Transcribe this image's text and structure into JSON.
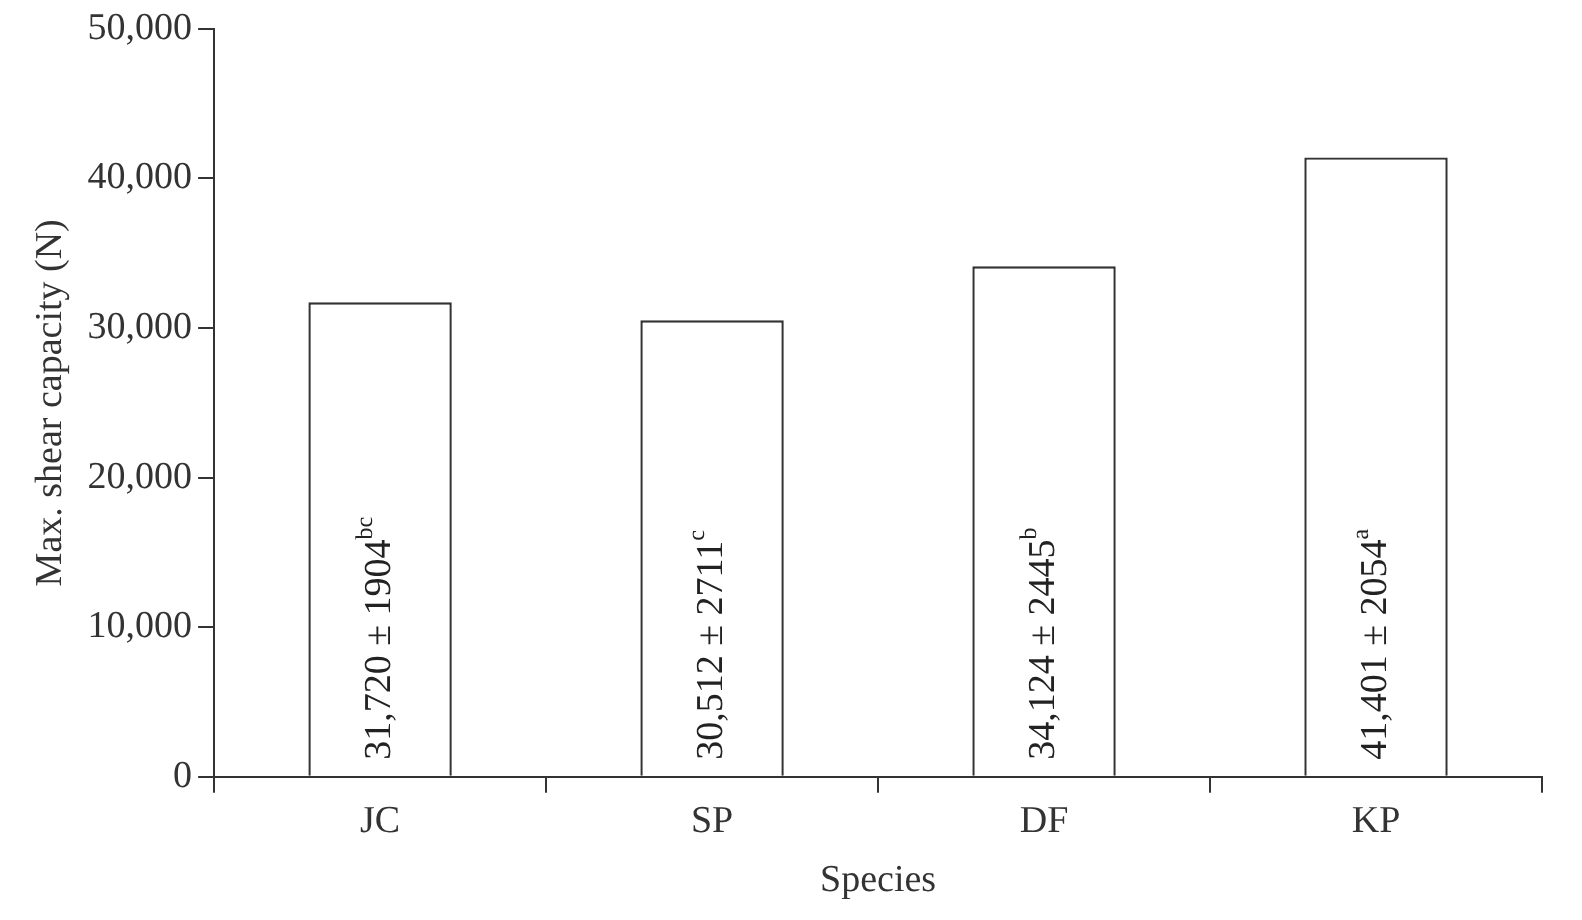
{
  "chart_data": {
    "type": "bar",
    "xlabel": "Species",
    "ylabel": "Max. shear capacity (N)",
    "categories": [
      "JC",
      "SP",
      "DF",
      "KP"
    ],
    "values": [
      31720,
      30512,
      34124,
      41401
    ],
    "value_labels": [
      "31,720 ± 1904$^{bc}$",
      "30,512 ± 2711$^{c}$",
      "34,124 ± 2445$^{b}$",
      "41,401 ± 2054$^{a}$"
    ],
    "color": "#ffffff",
    "ylim": [
      0,
      50000
    ],
    "yticks": [
      {
        "value": 0,
        "label": "0"
      },
      {
        "value": 10000,
        "label": "10,000"
      },
      {
        "value": 20000,
        "label": "20,000"
      },
      {
        "value": 30000,
        "label": "30,000"
      },
      {
        "value": 40000,
        "label": "40,000"
      },
      {
        "value": 50000,
        "label": "50,000"
      }
    ],
    "grid": false,
    "legend": false
  }
}
